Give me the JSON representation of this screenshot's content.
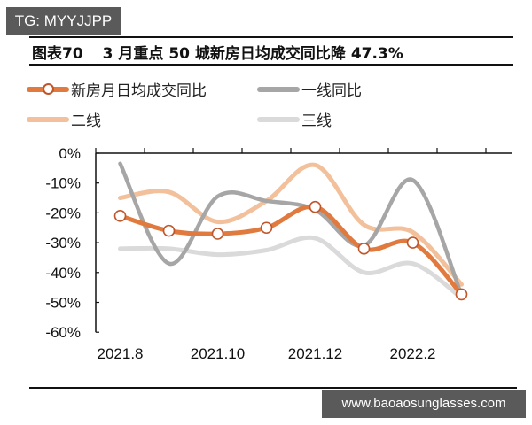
{
  "watermark_top": "TG: MYYJJPP",
  "watermark_bottom": "www.baoaosunglasses.com",
  "title": {
    "figure_number": "图表70",
    "text": "3 月重点 50 城新房日均成交同比降 47.3%"
  },
  "legend": [
    {
      "label": "新房月日均成交同比",
      "color": "#e07a3f",
      "marker": "circle"
    },
    {
      "label": "一线同比",
      "color": "#a6a6a6",
      "marker": "none"
    },
    {
      "label": "二线",
      "color": "#f2c09a",
      "marker": "none"
    },
    {
      "label": "三线",
      "color": "#dadada",
      "marker": "none"
    }
  ],
  "chart_data": {
    "type": "line",
    "title": "3 月重点 50 城新房日均成交同比降 47.3%",
    "xlabel": "",
    "ylabel": "",
    "x": [
      "2021.8",
      "2021.9",
      "2021.10",
      "2021.11",
      "2021.12",
      "2022.1",
      "2022.2",
      "2022.3"
    ],
    "x_tick_labels": [
      "2021.8",
      "2021.10",
      "2021.12",
      "2022.2"
    ],
    "y_tick_labels": [
      "0%",
      "-10%",
      "-20%",
      "-30%",
      "-40%",
      "-50%",
      "-60%"
    ],
    "ylim": [
      -60,
      0
    ],
    "grid": false,
    "legend_position": "top",
    "series": [
      {
        "name": "新房月日均成交同比",
        "color": "#e07a3f",
        "marker": "circle",
        "values": [
          -21,
          -26,
          -27,
          -25,
          -18,
          -32,
          -30,
          -47.3
        ]
      },
      {
        "name": "一线同比",
        "color": "#a6a6a6",
        "values": [
          -3.5,
          -37,
          -14.5,
          -16,
          -19,
          -31,
          -9,
          -47.5
        ]
      },
      {
        "name": "二线",
        "color": "#f2c09a",
        "values": [
          -15,
          -13,
          -23,
          -16,
          -4,
          -24,
          -26.5,
          -44
        ]
      },
      {
        "name": "三线",
        "color": "#dadada",
        "values": [
          -32,
          -32,
          -34,
          -32.5,
          -28.5,
          -40,
          -37,
          -48.5
        ]
      }
    ]
  }
}
